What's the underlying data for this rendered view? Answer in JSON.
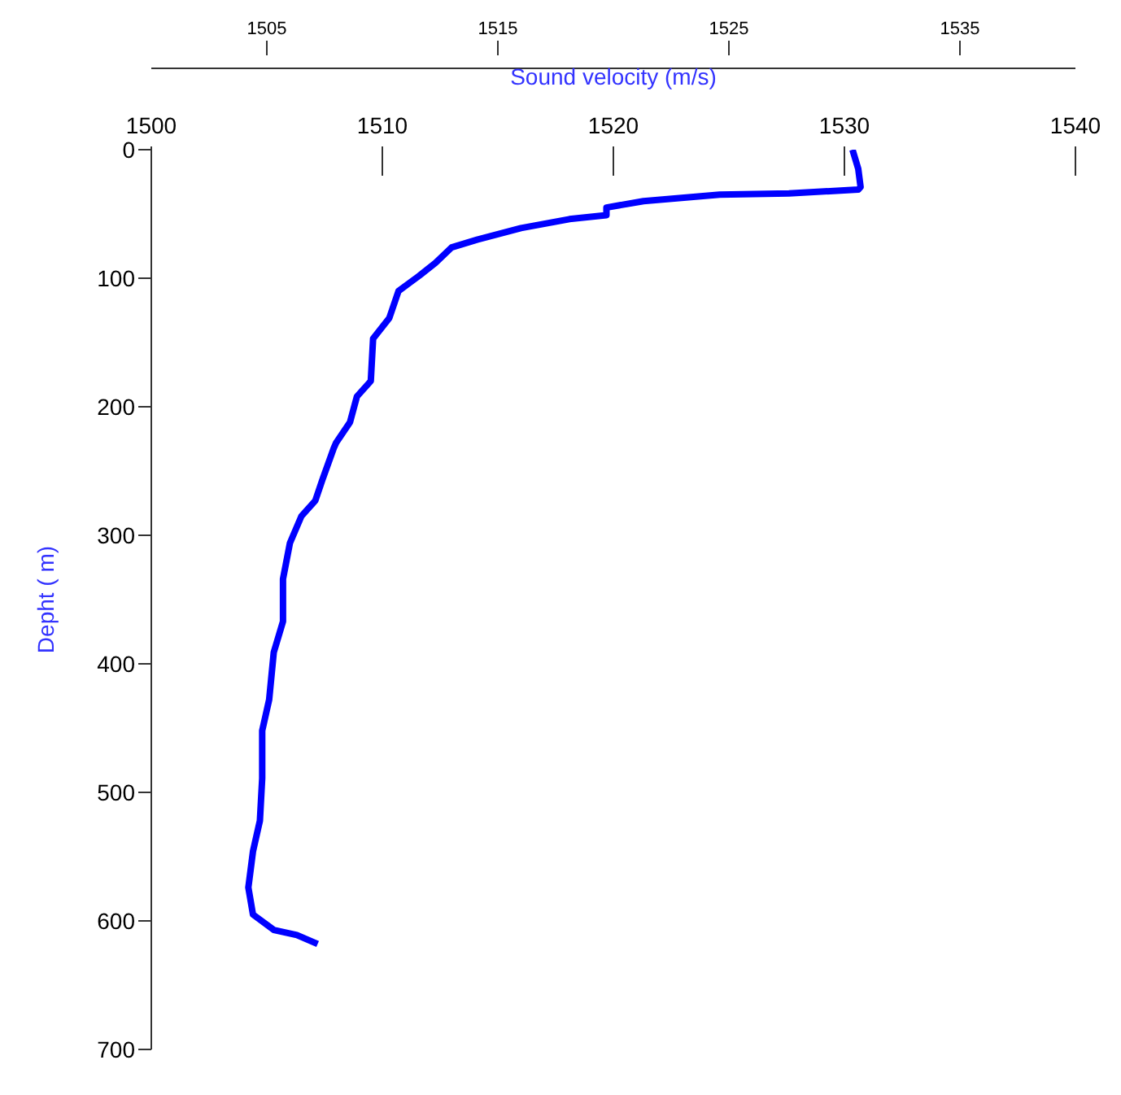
{
  "chart_data": {
    "type": "line",
    "xlabel": "Sound velocity (m/s)",
    "ylabel": "Depht ( m)",
    "x": [
      1530.35,
      1530.6,
      1530.7,
      1530.6,
      1527.6,
      1524.6,
      1521.3,
      1519.7,
      1519.7,
      1518.1,
      1516,
      1514.1,
      1513,
      1512.3,
      1511.6,
      1510.7,
      1510.3,
      1509.6,
      1509.5,
      1508.9,
      1508.6,
      1508,
      1507.9,
      1507.4,
      1507.1,
      1506.5,
      1506,
      1505.7,
      1505.7,
      1505.3,
      1505.1,
      1504.8,
      1504.8,
      1504.7,
      1504.4,
      1504.2,
      1504.4,
      1505.3,
      1506.3,
      1507.2
    ],
    "values": [
      0,
      15,
      29,
      31,
      34,
      35,
      40,
      45,
      51,
      54,
      61,
      70,
      76,
      88,
      98,
      110,
      131,
      147,
      180,
      192,
      212,
      228,
      232,
      257,
      273,
      285,
      306,
      334,
      367,
      391,
      428,
      452,
      489,
      522,
      546,
      574,
      595,
      607,
      611,
      618
    ],
    "color": "#0000ff",
    "xlim": [
      1500,
      1540
    ],
    "xticks": [
      1500,
      1510,
      1520,
      1530,
      1540
    ],
    "x2lim": [
      1500,
      1540
    ],
    "x2ticks": [
      1505,
      1515,
      1525,
      1535
    ],
    "ylim": [
      700,
      0
    ],
    "yticks": [
      0,
      100,
      200,
      300,
      400,
      500,
      600,
      700
    ],
    "grid": false,
    "legend": false,
    "marker": "none",
    "line_style": "solid"
  }
}
